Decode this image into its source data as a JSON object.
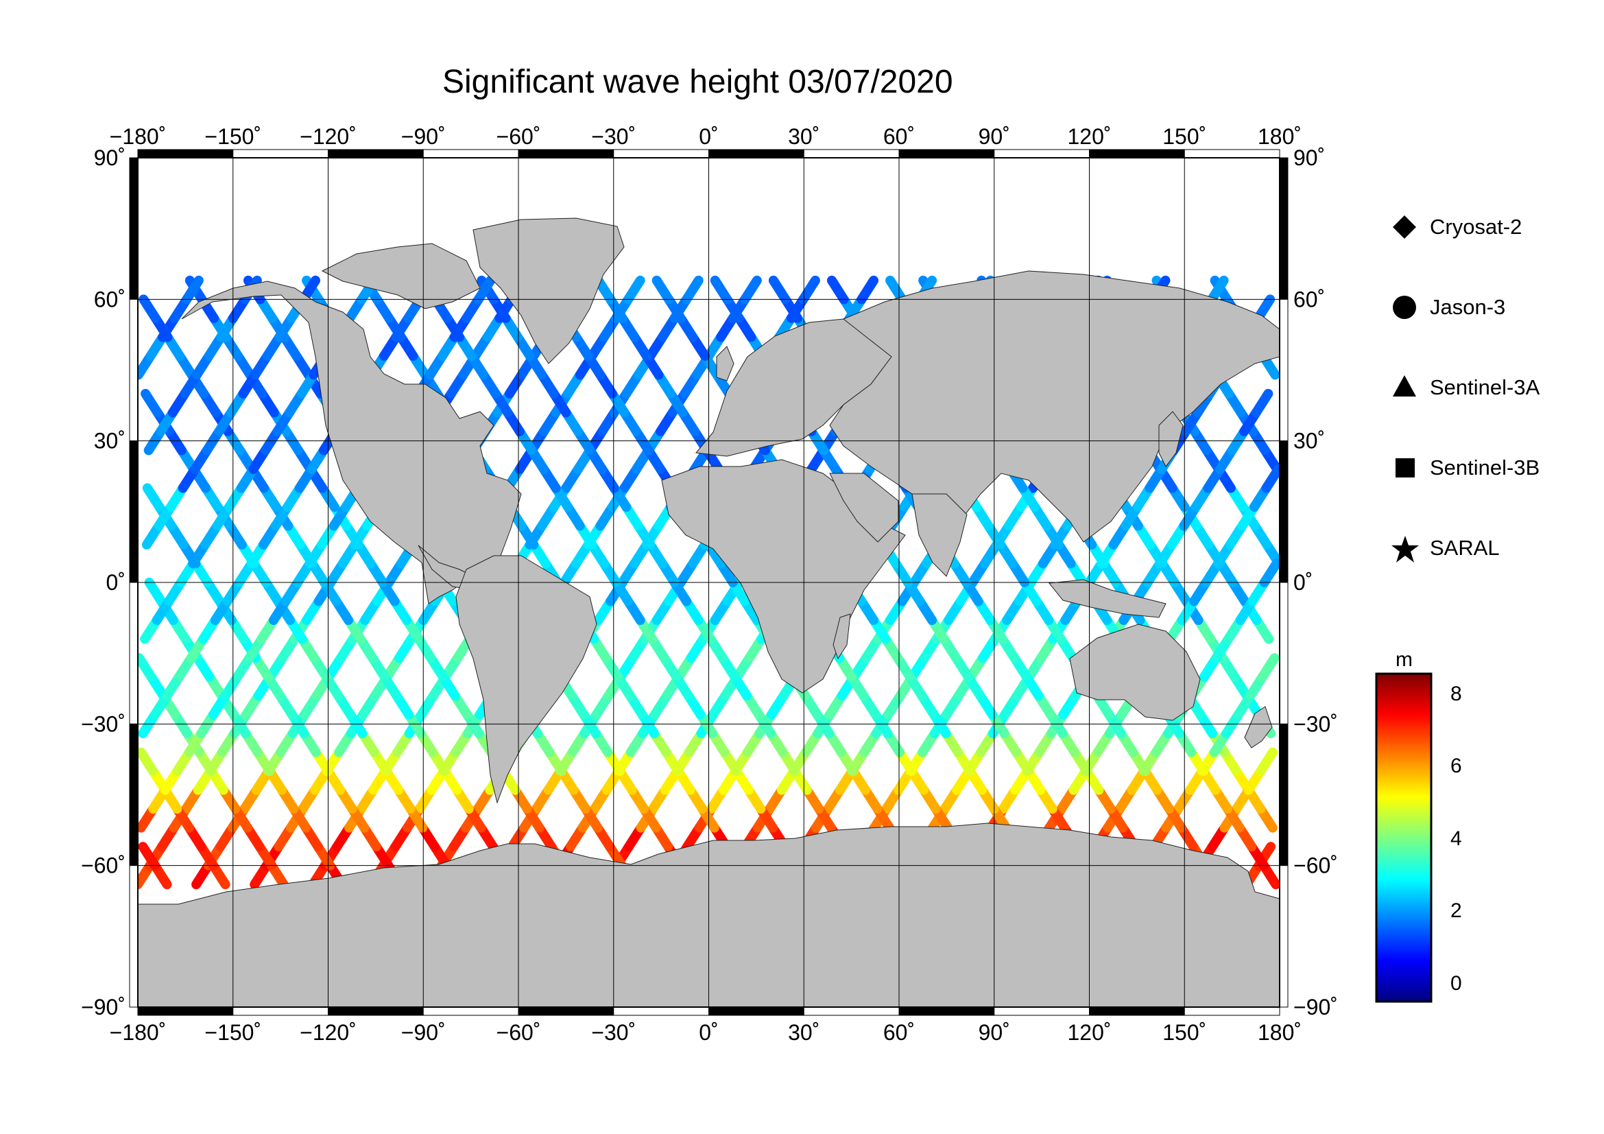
{
  "title": "Significant wave height 03/07/2020",
  "axes": {
    "lon_ticks": [
      "−180˚",
      "−150˚",
      "−120˚",
      "−90˚",
      "−60˚",
      "−30˚",
      "0˚",
      "30˚",
      "60˚",
      "90˚",
      "120˚",
      "150˚",
      "180˚"
    ],
    "lat_ticks": [
      "90˚",
      "60˚",
      "30˚",
      "0˚",
      "−30˚",
      "−60˚",
      "−90˚"
    ],
    "lon_range": [
      -180,
      180
    ],
    "lat_range": [
      -90,
      90
    ]
  },
  "legend": {
    "items": [
      {
        "label": "Cryosat-2",
        "symbol": "diamond"
      },
      {
        "label": "Jason-3",
        "symbol": "circle"
      },
      {
        "label": "Sentinel-3A",
        "symbol": "triangle"
      },
      {
        "label": "Sentinel-3B",
        "symbol": "square"
      },
      {
        "label": "SARAL",
        "symbol": "star"
      }
    ]
  },
  "colorbar": {
    "unit": "m",
    "ticks": [
      "8",
      "6",
      "4",
      "2",
      "0"
    ],
    "range": [
      -0.5,
      8.5
    ],
    "colors": [
      "#00007f",
      "#0000ff",
      "#007fff",
      "#00ffff",
      "#7fff7f",
      "#ffff00",
      "#ff7f00",
      "#ff0000",
      "#7f0000"
    ]
  },
  "colors": {
    "land": "#bebebe",
    "ocean": "#ffffff",
    "frame": "#000000"
  }
}
